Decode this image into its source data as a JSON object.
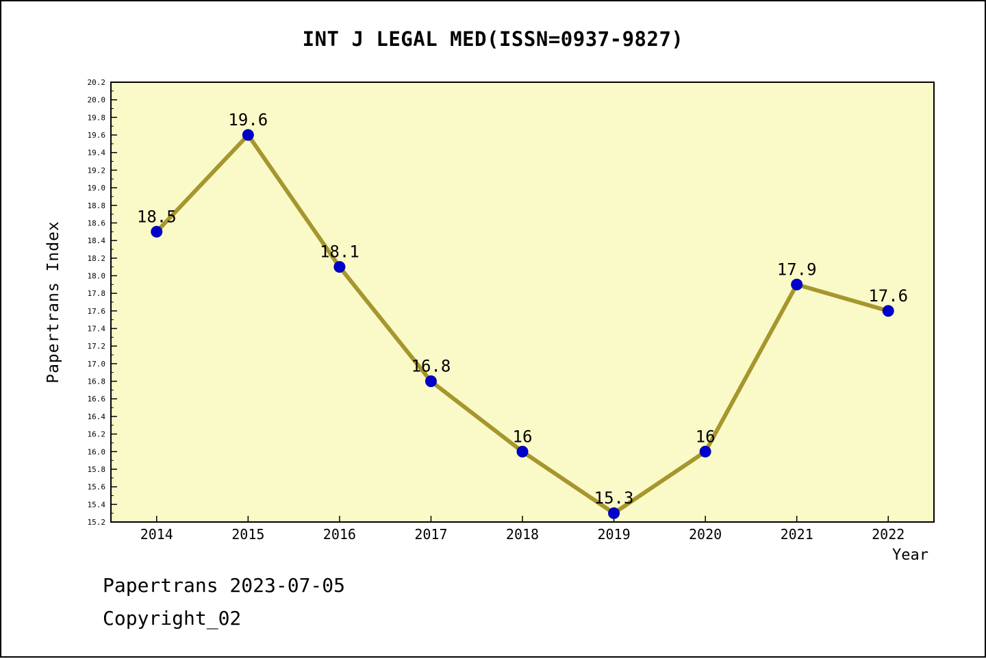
{
  "chart_data": {
    "type": "line",
    "title": "INT J LEGAL MED(ISSN=0937-9827)",
    "xlabel": "Year",
    "ylabel": "Papertrans Index",
    "x": [
      2014,
      2015,
      2016,
      2017,
      2018,
      2019,
      2020,
      2021,
      2022
    ],
    "values": [
      18.5,
      19.6,
      18.1,
      16.8,
      16,
      15.3,
      16,
      17.9,
      17.6
    ],
    "point_labels": [
      "18.5",
      "19.6",
      "18.1",
      "16.8",
      "16",
      "15.3",
      "16",
      "17.9",
      "17.6"
    ],
    "series_name": "Papertrans Index",
    "xlim": [
      2013.5,
      2022.5
    ],
    "ylim": [
      15.2,
      20.2
    ],
    "ytick_step": 0.2,
    "xticks": [
      "2014",
      "2015",
      "2016",
      "2017",
      "2018",
      "2019",
      "2020",
      "2021",
      "2022"
    ],
    "yticks": [
      "15.2",
      "15.4",
      "15.6",
      "15.8",
      "16.0",
      "16.2",
      "16.4",
      "16.6",
      "16.8",
      "17.0",
      "17.2",
      "17.4",
      "17.6",
      "17.8",
      "18.0",
      "18.2",
      "18.4",
      "18.6",
      "18.8",
      "19.0",
      "19.2",
      "19.4",
      "19.6",
      "19.8",
      "20.0",
      "20.2"
    ],
    "grid": false,
    "legend": null,
    "colors": {
      "plot_bg": "#FAFAC8",
      "line": "#A6962E",
      "marker": "#0000CD",
      "marker_edge": "#0000A0",
      "axis": "#000000",
      "page_bg": "#FFFFFF"
    }
  },
  "footer": {
    "line1": "Papertrans 2023-07-05",
    "line2": "Copyright_02"
  }
}
